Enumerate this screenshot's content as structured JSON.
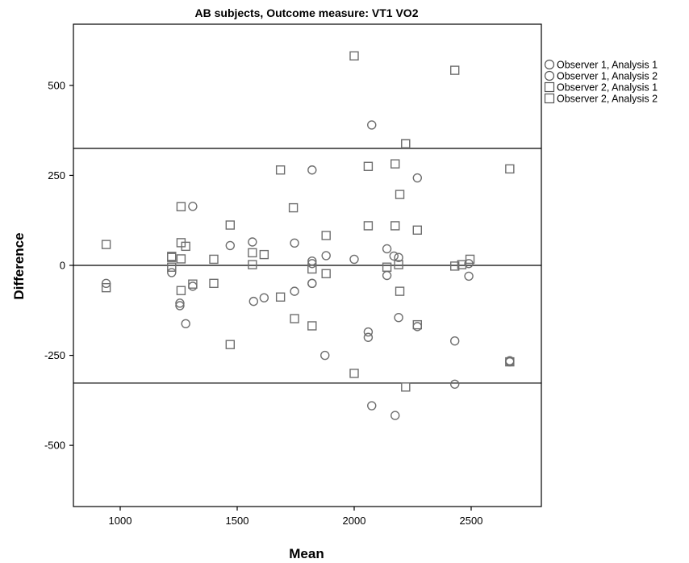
{
  "chart_data": {
    "type": "scatter",
    "title": "AB subjects, Outcome measure: VT1 VO2",
    "xlabel": "Mean",
    "ylabel": "Difference",
    "xlim": [
      800,
      2800
    ],
    "ylim": [
      -670,
      670
    ],
    "xticks": [
      1000,
      1500,
      2000,
      2500
    ],
    "yticks": [
      -500,
      -250,
      0,
      250,
      500
    ],
    "xtick_labels": [
      "1000",
      "1500",
      "2000",
      "2500"
    ],
    "ytick_labels": [
      "-500",
      "-250",
      "0",
      "250",
      "500"
    ],
    "grid": false,
    "legend_position": "right",
    "reference_lines": [
      325,
      0,
      -327
    ],
    "series": [
      {
        "name": "Observer 1, Analysis 1",
        "marker": "circle",
        "points": [
          [
            940,
            -50
          ],
          [
            1255,
            -112
          ],
          [
            1310,
            164
          ],
          [
            1280,
            -162
          ],
          [
            1570,
            -100
          ],
          [
            1615,
            -90
          ],
          [
            1745,
            62
          ],
          [
            1745,
            -72
          ],
          [
            1820,
            12
          ],
          [
            1820,
            5
          ],
          [
            1820,
            -50
          ],
          [
            1880,
            27
          ],
          [
            2000,
            17
          ],
          [
            2060,
            -185
          ],
          [
            2075,
            390
          ],
          [
            2140,
            46
          ],
          [
            2140,
            -28
          ],
          [
            2170,
            26
          ],
          [
            2190,
            22
          ],
          [
            2190,
            -145
          ],
          [
            2270,
            -170
          ],
          [
            2270,
            243
          ],
          [
            2430,
            -210
          ],
          [
            2490,
            -30
          ],
          [
            2490,
            5
          ],
          [
            2665,
            -265
          ]
        ]
      },
      {
        "name": "Observer 1, Analysis 2",
        "marker": "circle",
        "points": [
          [
            1220,
            -20
          ],
          [
            1255,
            -105
          ],
          [
            1310,
            -58
          ],
          [
            1470,
            55
          ],
          [
            1565,
            65
          ],
          [
            1820,
            265
          ],
          [
            1820,
            -50
          ],
          [
            1875,
            -250
          ],
          [
            2060,
            -200
          ],
          [
            2075,
            -390
          ],
          [
            2175,
            -417
          ],
          [
            2430,
            -330
          ],
          [
            2665,
            -268
          ]
        ]
      },
      {
        "name": "Observer 2, Analysis 1",
        "marker": "square",
        "points": [
          [
            940,
            58
          ],
          [
            1220,
            -5
          ],
          [
            1220,
            22
          ],
          [
            1260,
            163
          ],
          [
            1260,
            63
          ],
          [
            1280,
            53
          ],
          [
            1310,
            -52
          ],
          [
            1400,
            17
          ],
          [
            1470,
            112
          ],
          [
            1565,
            35
          ],
          [
            1615,
            30
          ],
          [
            1685,
            265
          ],
          [
            1740,
            160
          ],
          [
            1745,
            -148
          ],
          [
            1820,
            -168
          ],
          [
            1880,
            83
          ],
          [
            1880,
            -23
          ],
          [
            2000,
            582
          ],
          [
            2000,
            -300
          ],
          [
            2060,
            275
          ],
          [
            2060,
            110
          ],
          [
            2175,
            282
          ],
          [
            2175,
            110
          ],
          [
            2195,
            197
          ],
          [
            2195,
            -72
          ],
          [
            2220,
            338
          ],
          [
            2220,
            -338
          ],
          [
            2270,
            98
          ],
          [
            2270,
            -165
          ],
          [
            2430,
            542
          ],
          [
            2430,
            -2
          ],
          [
            2495,
            17
          ],
          [
            2665,
            268
          ]
        ]
      },
      {
        "name": "Observer 2, Analysis 2",
        "marker": "square",
        "points": [
          [
            940,
            -62
          ],
          [
            1220,
            25
          ],
          [
            1260,
            18
          ],
          [
            1260,
            -70
          ],
          [
            1400,
            -50
          ],
          [
            1470,
            -220
          ],
          [
            1565,
            2
          ],
          [
            1685,
            -88
          ],
          [
            1820,
            -10
          ],
          [
            2140,
            -5
          ],
          [
            2190,
            2
          ],
          [
            2220,
            338
          ],
          [
            2460,
            2
          ],
          [
            2665,
            -268
          ]
        ]
      }
    ]
  }
}
